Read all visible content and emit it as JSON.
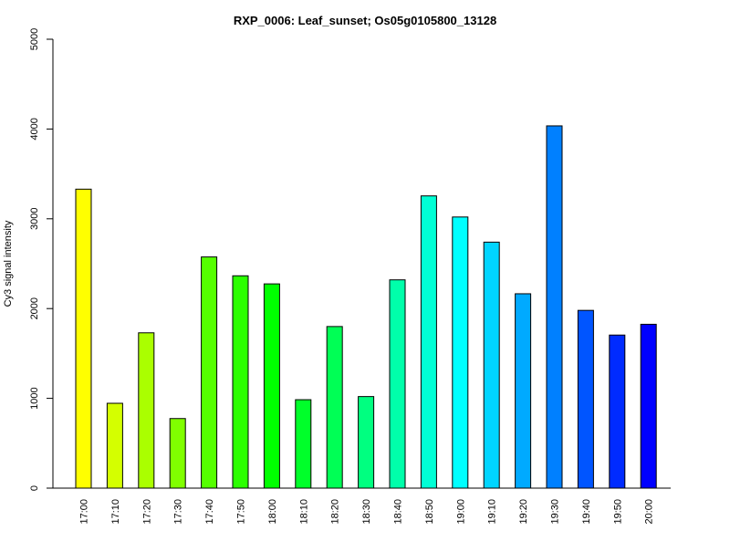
{
  "chart_data": {
    "type": "bar",
    "title": "RXP_0006: Leaf_sunset; Os05g0105800_13128",
    "xlabel": "",
    "ylabel": "Cy3 signal intensity",
    "ylim": [
      0,
      5000
    ],
    "yticks": [
      0,
      1000,
      2000,
      3000,
      4000,
      5000
    ],
    "grid": false,
    "categories": [
      "17:00",
      "17:10",
      "17:20",
      "17:30",
      "17:40",
      "17:50",
      "18:00",
      "18:10",
      "18:20",
      "18:30",
      "18:40",
      "18:50",
      "19:00",
      "19:10",
      "19:20",
      "19:30",
      "19:40",
      "19:50",
      "20:00"
    ],
    "values": [
      3330,
      945,
      1730,
      775,
      2575,
      2365,
      2275,
      985,
      1800,
      1020,
      2320,
      3255,
      3020,
      2740,
      2165,
      4035,
      1980,
      1705,
      1825
    ],
    "colors": [
      "#FFFF00",
      "#D4FF00",
      "#AAFF00",
      "#80FF00",
      "#55FF00",
      "#2BFF00",
      "#00FF00",
      "#00FF2A",
      "#00FF55",
      "#00FF80",
      "#00FFAA",
      "#00FFD5",
      "#00FFFF",
      "#00D5FF",
      "#00AAFF",
      "#0080FF",
      "#0055FF",
      "#002BFF",
      "#0000FF"
    ]
  }
}
